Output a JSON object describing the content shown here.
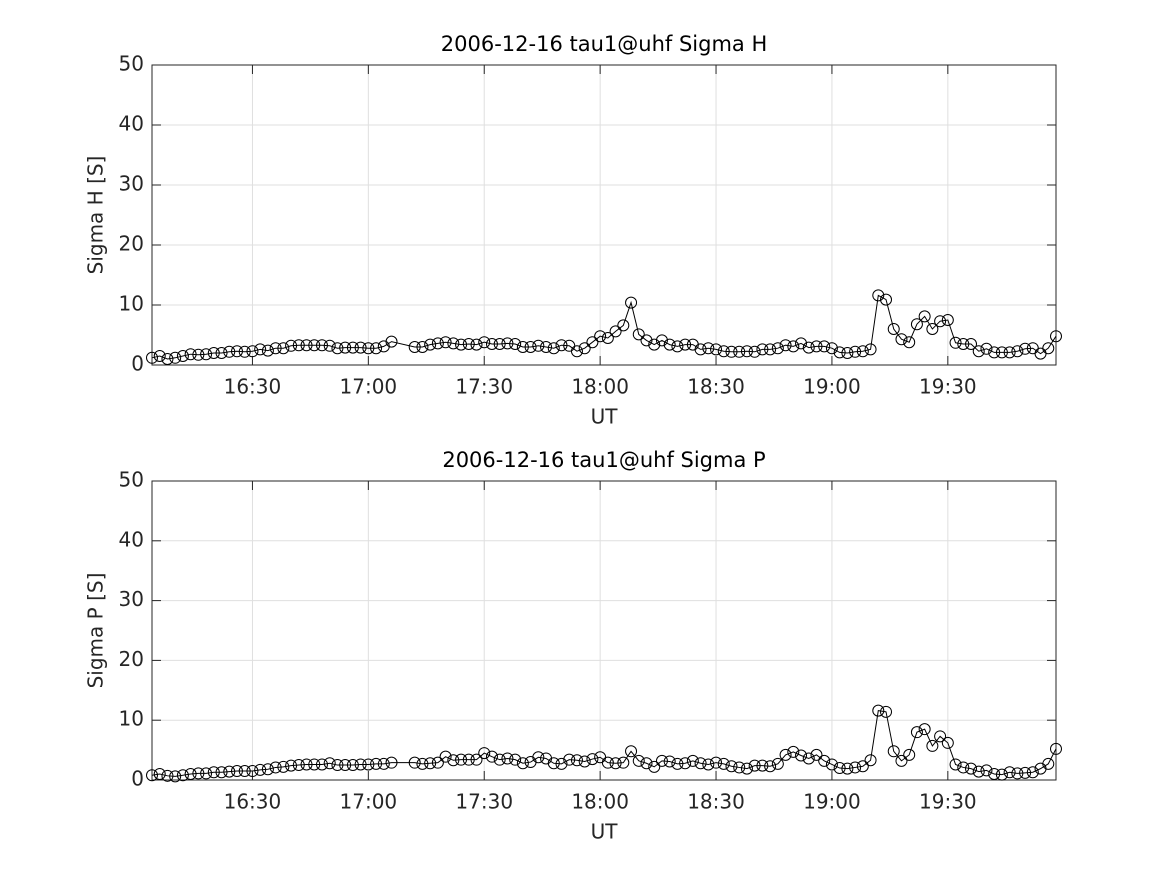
{
  "chart_data": [
    {
      "type": "line",
      "title": "2006-12-16  tau1@uhf Sigma H",
      "xlabel": "UT",
      "ylabel": "Sigma H [S]",
      "x": [
        "16:04",
        "16:06",
        "16:08",
        "16:10",
        "16:12",
        "16:14",
        "16:16",
        "16:18",
        "16:20",
        "16:22",
        "16:24",
        "16:26",
        "16:28",
        "16:30",
        "16:32",
        "16:34",
        "16:36",
        "16:38",
        "16:40",
        "16:42",
        "16:44",
        "16:46",
        "16:48",
        "16:50",
        "16:52",
        "16:54",
        "16:56",
        "16:58",
        "17:00",
        "17:02",
        "17:04",
        "17:06",
        "17:12",
        "17:14",
        "17:16",
        "17:18",
        "17:20",
        "17:22",
        "17:24",
        "17:26",
        "17:28",
        "17:30",
        "17:32",
        "17:34",
        "17:36",
        "17:38",
        "17:40",
        "17:42",
        "17:44",
        "17:46",
        "17:48",
        "17:50",
        "17:52",
        "17:54",
        "17:56",
        "17:58",
        "18:00",
        "18:02",
        "18:04",
        "18:06",
        "18:08",
        "18:10",
        "18:12",
        "18:14",
        "18:16",
        "18:18",
        "18:20",
        "18:22",
        "18:24",
        "18:26",
        "18:28",
        "18:30",
        "18:32",
        "18:34",
        "18:36",
        "18:38",
        "18:40",
        "18:42",
        "18:44",
        "18:46",
        "18:48",
        "18:50",
        "18:52",
        "18:54",
        "18:56",
        "18:58",
        "19:00",
        "19:02",
        "19:04",
        "19:06",
        "19:08",
        "19:10",
        "19:12",
        "19:14",
        "19:16",
        "19:18",
        "19:20",
        "19:22",
        "19:24",
        "19:26",
        "19:28",
        "19:30",
        "19:32",
        "19:34",
        "19:36",
        "19:38",
        "19:40",
        "19:42",
        "19:44",
        "19:46",
        "19:48",
        "19:50",
        "19:52",
        "19:54",
        "19:56",
        "19:58"
      ],
      "series": [
        {
          "color": "#000000",
          "marker": "circle",
          "values": [
            1.2,
            1.5,
            1.0,
            1.2,
            1.5,
            1.8,
            1.7,
            1.8,
            2.0,
            2.0,
            2.2,
            2.3,
            2.2,
            2.3,
            2.6,
            2.4,
            2.8,
            2.8,
            3.2,
            3.3,
            3.3,
            3.3,
            3.3,
            3.2,
            2.8,
            2.9,
            2.9,
            2.9,
            2.8,
            2.8,
            3.1,
            3.9,
            3.0,
            3.0,
            3.4,
            3.6,
            3.8,
            3.6,
            3.4,
            3.5,
            3.4,
            3.8,
            3.5,
            3.5,
            3.6,
            3.5,
            3.0,
            3.0,
            3.2,
            3.0,
            2.8,
            3.3,
            3.2,
            2.3,
            2.8,
            3.8,
            4.8,
            4.5,
            5.6,
            6.6,
            10.4,
            5.1,
            4.1,
            3.4,
            4.1,
            3.4,
            3.1,
            3.4,
            3.4,
            2.6,
            2.8,
            2.6,
            2.3,
            2.2,
            2.2,
            2.3,
            2.2,
            2.6,
            2.6,
            2.8,
            3.3,
            3.1,
            3.6,
            2.9,
            3.1,
            3.1,
            2.8,
            2.1,
            2.0,
            2.2,
            2.3,
            2.6,
            11.6,
            10.9,
            6.0,
            4.3,
            3.8,
            6.8,
            8.1,
            6.0,
            7.3,
            7.5,
            3.7,
            3.5,
            3.5,
            2.3,
            2.7,
            2.1,
            2.1,
            2.1,
            2.3,
            2.7,
            2.8,
            1.9,
            2.8,
            4.8
          ]
        }
      ],
      "xlim": [
        "16:04",
        "19:58"
      ],
      "xticks": [
        "16:30",
        "17:00",
        "17:30",
        "18:00",
        "18:30",
        "19:00",
        "19:30"
      ],
      "ylim": [
        0,
        50
      ],
      "yticks": [
        0,
        10,
        20,
        30,
        40,
        50
      ],
      "grid": true
    },
    {
      "type": "line",
      "title": "2006-12-16  tau1@uhf Sigma P",
      "xlabel": "UT",
      "ylabel": "Sigma P [S]",
      "x": [
        "16:04",
        "16:06",
        "16:08",
        "16:10",
        "16:12",
        "16:14",
        "16:16",
        "16:18",
        "16:20",
        "16:22",
        "16:24",
        "16:26",
        "16:28",
        "16:30",
        "16:32",
        "16:34",
        "16:36",
        "16:38",
        "16:40",
        "16:42",
        "16:44",
        "16:46",
        "16:48",
        "16:50",
        "16:52",
        "16:54",
        "16:56",
        "16:58",
        "17:00",
        "17:02",
        "17:04",
        "17:06",
        "17:12",
        "17:14",
        "17:16",
        "17:18",
        "17:20",
        "17:22",
        "17:24",
        "17:26",
        "17:28",
        "17:30",
        "17:32",
        "17:34",
        "17:36",
        "17:38",
        "17:40",
        "17:42",
        "17:44",
        "17:46",
        "17:48",
        "17:50",
        "17:52",
        "17:54",
        "17:56",
        "17:58",
        "18:00",
        "18:02",
        "18:04",
        "18:06",
        "18:08",
        "18:10",
        "18:12",
        "18:14",
        "18:16",
        "18:18",
        "18:20",
        "18:22",
        "18:24",
        "18:26",
        "18:28",
        "18:30",
        "18:32",
        "18:34",
        "18:36",
        "18:38",
        "18:40",
        "18:42",
        "18:44",
        "18:46",
        "18:48",
        "18:50",
        "18:52",
        "18:54",
        "18:56",
        "18:58",
        "19:00",
        "19:02",
        "19:04",
        "19:06",
        "19:08",
        "19:10",
        "19:12",
        "19:14",
        "19:16",
        "19:18",
        "19:20",
        "19:22",
        "19:24",
        "19:26",
        "19:28",
        "19:30",
        "19:32",
        "19:34",
        "19:36",
        "19:38",
        "19:40",
        "19:42",
        "19:44",
        "19:46",
        "19:48",
        "19:50",
        "19:52",
        "19:54",
        "19:56",
        "19:58"
      ],
      "series": [
        {
          "color": "#000000",
          "marker": "circle",
          "values": [
            0.8,
            1.0,
            0.7,
            0.6,
            0.8,
            1.0,
            1.1,
            1.1,
            1.3,
            1.3,
            1.4,
            1.5,
            1.5,
            1.5,
            1.7,
            1.8,
            2.1,
            2.2,
            2.4,
            2.5,
            2.6,
            2.6,
            2.6,
            2.8,
            2.5,
            2.5,
            2.5,
            2.6,
            2.6,
            2.7,
            2.7,
            2.9,
            2.9,
            2.7,
            2.8,
            2.9,
            3.9,
            3.3,
            3.4,
            3.4,
            3.4,
            4.5,
            3.9,
            3.4,
            3.6,
            3.4,
            2.8,
            3.0,
            3.8,
            3.6,
            2.8,
            2.7,
            3.4,
            3.3,
            3.1,
            3.5,
            3.8,
            2.9,
            2.8,
            2.9,
            4.8,
            3.2,
            2.8,
            2.2,
            3.2,
            3.1,
            2.7,
            2.8,
            3.2,
            2.8,
            2.6,
            2.9,
            2.7,
            2.3,
            2.1,
            1.9,
            2.4,
            2.4,
            2.3,
            2.7,
            4.2,
            4.7,
            4.1,
            3.6,
            4.2,
            3.2,
            2.6,
            2.0,
            1.9,
            2.1,
            2.3,
            3.3,
            11.6,
            11.4,
            4.8,
            3.2,
            4.2,
            8.0,
            8.5,
            5.7,
            7.3,
            6.2,
            2.6,
            2.1,
            1.9,
            1.4,
            1.6,
            1.0,
            0.9,
            1.3,
            1.1,
            1.2,
            1.3,
            1.9,
            2.7,
            5.2
          ]
        }
      ],
      "xlim": [
        "16:04",
        "19:58"
      ],
      "xticks": [
        "16:30",
        "17:00",
        "17:30",
        "18:00",
        "18:30",
        "19:00",
        "19:30"
      ],
      "ylim": [
        0,
        50
      ],
      "yticks": [
        0,
        10,
        20,
        30,
        40,
        50
      ],
      "grid": true
    }
  ]
}
